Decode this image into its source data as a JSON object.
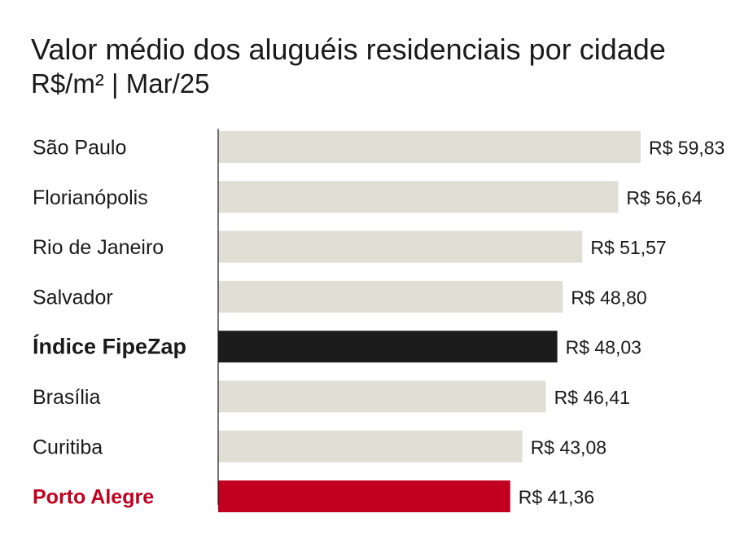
{
  "chart_data": {
    "type": "bar",
    "orientation": "horizontal",
    "title": "Valor médio dos aluguéis residenciais por cidade",
    "subtitle": "R$/m² | Mar/25",
    "categories": [
      "São Paulo",
      "Florianópolis",
      "Rio de Janeiro",
      "Salvador",
      "Índice FipeZap",
      "Brasília",
      "Curitiba",
      "Porto Alegre"
    ],
    "values": [
      59.83,
      56.64,
      51.57,
      48.8,
      48.03,
      46.41,
      43.08,
      41.36
    ],
    "value_labels": [
      "R$ 59,83",
      "R$ 56,64",
      "R$ 51,57",
      "R$ 48,80",
      "R$ 48,03",
      "R$ 46,41",
      "R$ 43,08",
      "R$ 41,36"
    ],
    "xlim": [
      0,
      59.83
    ],
    "grid": false,
    "colors": {
      "default_bar": "#e0dfd6",
      "highlight_index": "#1c1c1c",
      "highlight_city": "#c0001e",
      "label_default": "#1a1a1a",
      "label_city": "#c0001e"
    },
    "highlight": {
      "Índice FipeZap": "index",
      "Porto Alegre": "city"
    }
  }
}
